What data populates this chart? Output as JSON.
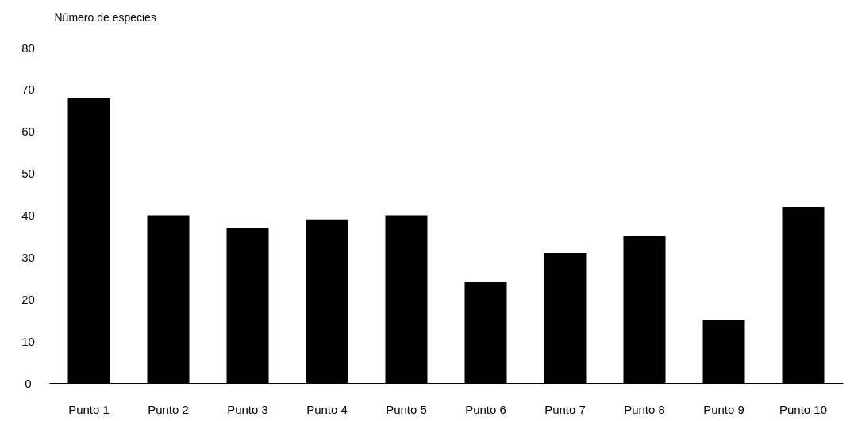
{
  "chart_data": {
    "type": "bar",
    "ylabel": "Número de especies",
    "categories": [
      "Punto 1",
      "Punto 2",
      "Punto 3",
      "Punto 4",
      "Punto 5",
      "Punto 6",
      "Punto 7",
      "Punto 8",
      "Punto 9",
      "Punto 10"
    ],
    "values": [
      68,
      40,
      37,
      39,
      40,
      24,
      31,
      35,
      15,
      42
    ],
    "color": "#000000",
    "ylim": [
      0,
      80
    ],
    "yticks": [
      0,
      10,
      20,
      30,
      40,
      50,
      60,
      70,
      80
    ],
    "grid": false
  }
}
